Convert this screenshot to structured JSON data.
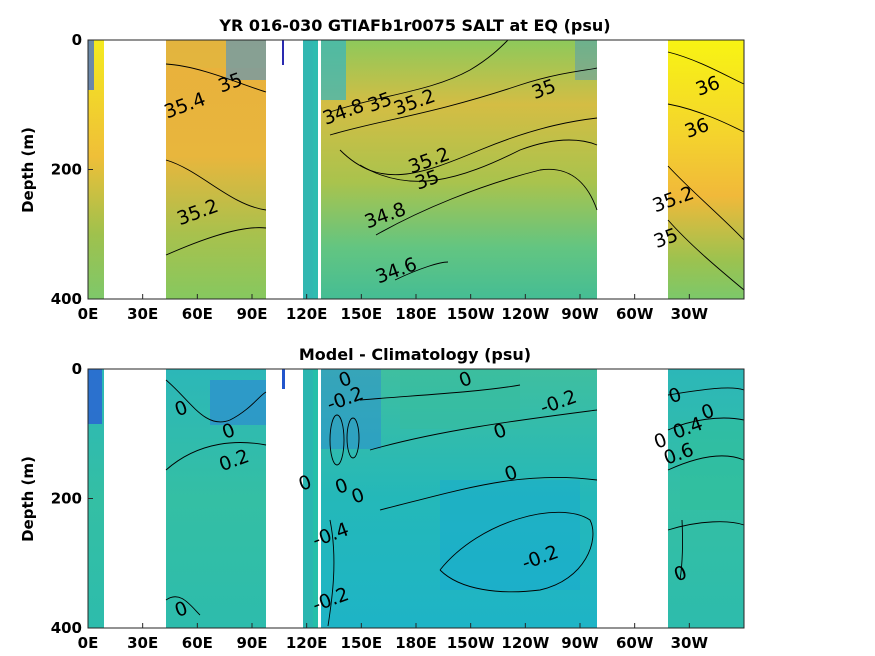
{
  "chart_data": [
    {
      "type": "heatmap",
      "title": "YR 016-030 GTIAFb1r0075 SALT at EQ (psu)",
      "ylabel": "Depth (m)",
      "xlabel": "",
      "x_tick_labels": [
        "0E",
        "30E",
        "60E",
        "90E",
        "120E",
        "150E",
        "180E",
        "150W",
        "120W",
        "90W",
        "60W",
        "30W"
      ],
      "x_tick_lon": [
        0,
        30,
        60,
        90,
        120,
        150,
        180,
        210,
        240,
        270,
        300,
        330
      ],
      "xlim_lon": [
        0,
        360
      ],
      "y_tick_labels": [
        "0",
        "200",
        "400"
      ],
      "y_tick_values": [
        0,
        200,
        400
      ],
      "ylim": [
        0,
        400
      ],
      "y_reversed": true,
      "grid": false,
      "colormap": "parula",
      "contour_labels": [
        {
          "text": "35",
          "lon": 78,
          "depth": 65
        },
        {
          "text": "35.4",
          "lon": 53,
          "depth": 100
        },
        {
          "text": "35.2",
          "lon": 60,
          "depth": 265
        },
        {
          "text": "34.8",
          "lon": 140,
          "depth": 110
        },
        {
          "text": "35",
          "lon": 160,
          "depth": 95
        },
        {
          "text": "35.2",
          "lon": 179,
          "depth": 95
        },
        {
          "text": "35",
          "lon": 250,
          "depth": 75
        },
        {
          "text": "35.2",
          "lon": 187,
          "depth": 185
        },
        {
          "text": "35",
          "lon": 186,
          "depth": 215
        },
        {
          "text": "34.8",
          "lon": 163,
          "depth": 270
        },
        {
          "text": "34.6",
          "lon": 169,
          "depth": 355
        },
        {
          "text": "36",
          "lon": 340,
          "depth": 70
        },
        {
          "text": "36",
          "lon": 334,
          "depth": 135
        },
        {
          "text": "35.2",
          "lon": 321,
          "depth": 245
        },
        {
          "text": "35",
          "lon": 317,
          "depth": 305
        }
      ]
    },
    {
      "type": "heatmap",
      "title": "Model - Climatology (psu)",
      "ylabel": "Depth (m)",
      "xlabel": "",
      "x_tick_labels": [
        "0E",
        "30E",
        "60E",
        "90E",
        "120E",
        "150E",
        "180E",
        "150W",
        "120W",
        "90W",
        "60W",
        "30W"
      ],
      "x_tick_lon": [
        0,
        30,
        60,
        90,
        120,
        150,
        180,
        210,
        240,
        270,
        300,
        330
      ],
      "xlim_lon": [
        0,
        360
      ],
      "y_tick_labels": [
        "0",
        "200",
        "400"
      ],
      "y_tick_values": [
        0,
        200,
        400
      ],
      "ylim": [
        0,
        400
      ],
      "y_reversed": true,
      "grid": false,
      "colormap": "parula",
      "contour_labels": [
        {
          "text": "0",
          "lon": 51,
          "depth": 60
        },
        {
          "text": "0",
          "lon": 77,
          "depth": 95
        },
        {
          "text": "0.2",
          "lon": 80,
          "depth": 140
        },
        {
          "text": "0",
          "lon": 51,
          "depth": 370
        },
        {
          "text": "-0.2",
          "lon": 141,
          "depth": 45
        },
        {
          "text": "0",
          "lon": 141,
          "depth": 15
        },
        {
          "text": "0",
          "lon": 119,
          "depth": 175
        },
        {
          "text": "0",
          "lon": 139,
          "depth": 180
        },
        {
          "text": "0",
          "lon": 148,
          "depth": 195
        },
        {
          "text": "-0.4",
          "lon": 133,
          "depth": 255
        },
        {
          "text": "-0.2",
          "lon": 133,
          "depth": 355
        },
        {
          "text": "0",
          "lon": 207,
          "depth": 15
        },
        {
          "text": "0",
          "lon": 226,
          "depth": 95
        },
        {
          "text": "0",
          "lon": 232,
          "depth": 160
        },
        {
          "text": "-0.2",
          "lon": 258,
          "depth": 50
        },
        {
          "text": "-0.2",
          "lon": 248,
          "depth": 290
        },
        {
          "text": "0",
          "lon": 322,
          "depth": 40
        },
        {
          "text": "0",
          "lon": 340,
          "depth": 65
        },
        {
          "text": "0",
          "lon": 314,
          "depth": 110
        },
        {
          "text": "0.4",
          "lon": 329,
          "depth": 90
        },
        {
          "text": "0.6",
          "lon": 324,
          "depth": 130
        },
        {
          "text": "0",
          "lon": 325,
          "depth": 315
        }
      ]
    }
  ]
}
